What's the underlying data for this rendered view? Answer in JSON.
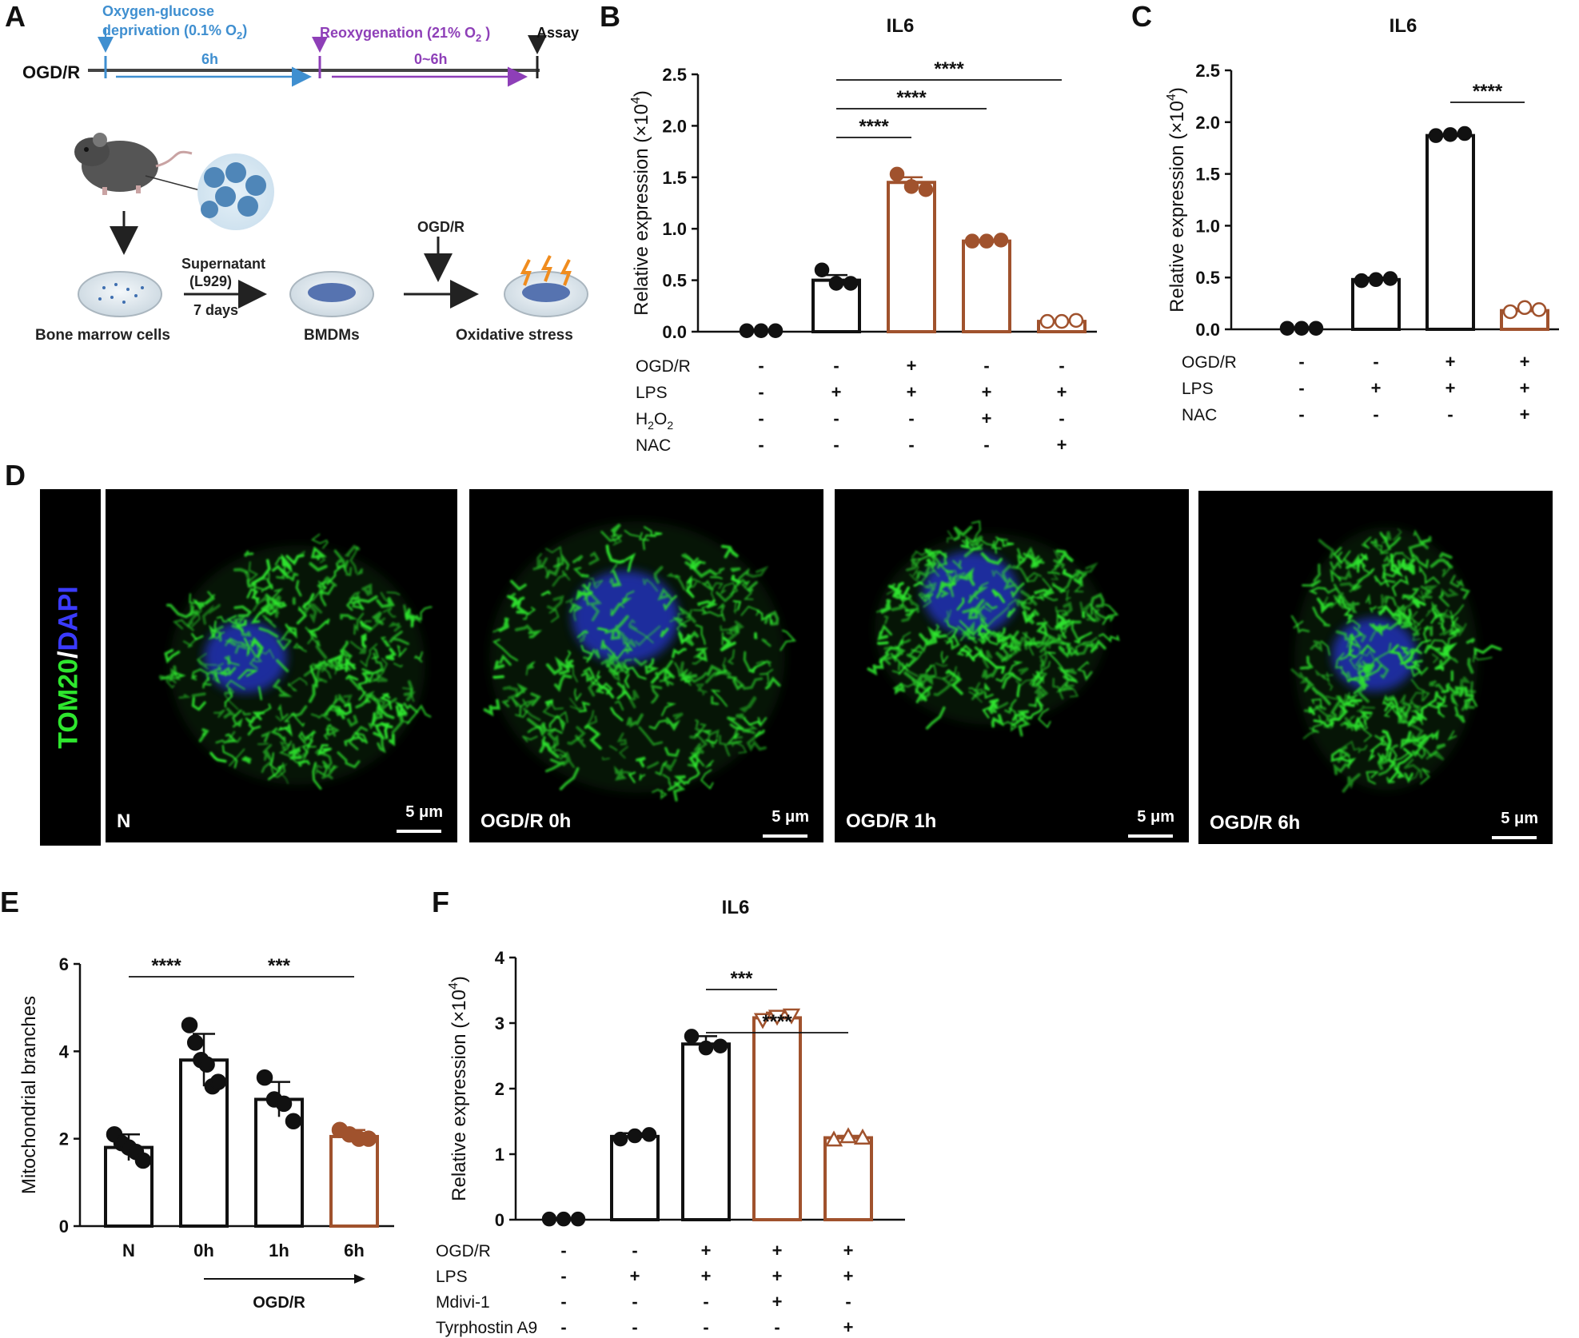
{
  "panels": {
    "A": "A",
    "B": "B",
    "C": "C",
    "D": "D",
    "E": "E",
    "F": "F"
  },
  "colors": {
    "black": "#111111",
    "brown": "#a0522d",
    "blue": "#3f8fd0",
    "purple": "#8e3fb8",
    "green": "#2ee62e",
    "dapi": "#3b3bff"
  },
  "panel_a": {
    "ogdr_label": "OGD/R",
    "ogd_line1": "Oxygen-glucose",
    "ogd_line2": "deprivation (0.1% O",
    "ogd_line2_sub": "2",
    "ogd_line2_end": ")",
    "ogd_time": "6h",
    "reox_label": "Reoxygenation  (21% O",
    "reox_sub": "2",
    "reox_end": " )",
    "reox_time": "0~6h",
    "assay": "Assay",
    "supernatant": "Supernatant",
    "l929": "(L929)",
    "seven_days": "7 days",
    "bone_marrow": "Bone marrow cells",
    "bmdms": "BMDMs",
    "ogdr_arrow": "OGD/R",
    "oxidative": "Oxidative stress"
  },
  "panel_d": {
    "stain_a": "TOM20",
    "stain_sep": "/",
    "stain_b": "DAPI",
    "images": [
      {
        "label": "N",
        "scale": "5 μm"
      },
      {
        "label": "OGD/R 0h",
        "scale": "5 μm"
      },
      {
        "label": "OGD/R 1h",
        "scale": "5 μm"
      },
      {
        "label": "OGD/R 6h",
        "scale": "5 μm"
      }
    ]
  },
  "chart_data": [
    {
      "id": "B",
      "type": "bar",
      "title": "IL6",
      "ylabel": "Relative expression (×10",
      "ylabel_sup": "4",
      "ylabel_end": ")",
      "ylim": [
        0,
        2.5
      ],
      "yticks": [
        "0.0",
        "0.5",
        "1.0",
        "1.5",
        "2.0",
        "2.5"
      ],
      "bars": [
        {
          "value": 0.0,
          "color": "black",
          "points": [
            0.01,
            0.01,
            0.01
          ]
        },
        {
          "value": 0.5,
          "color": "black",
          "points": [
            0.6,
            0.47,
            0.47
          ],
          "err": 0.05
        },
        {
          "value": 1.45,
          "color": "brown",
          "points": [
            1.53,
            1.41,
            1.38
          ],
          "err": 0.05
        },
        {
          "value": 0.88,
          "color": "brown",
          "points": [
            0.88,
            0.88,
            0.89
          ],
          "err": 0.01
        },
        {
          "value": 0.1,
          "color": "brown",
          "points": [
            0.1,
            0.1,
            0.11
          ],
          "err": 0.01
        }
      ],
      "treatments": [
        {
          "name": "OGD/R",
          "marks": [
            "-",
            "-",
            "+",
            "-",
            "-"
          ]
        },
        {
          "name": "LPS",
          "marks": [
            "-",
            "+",
            "+",
            "+",
            "+"
          ]
        },
        {
          "name": "H",
          "name_sub": "2",
          "name_mid": "O",
          "name_sub2": "2",
          "marks": [
            "-",
            "-",
            "-",
            "+",
            "-"
          ]
        },
        {
          "name": "NAC",
          "marks": [
            "-",
            "-",
            "-",
            "-",
            "+"
          ]
        }
      ],
      "significance": [
        {
          "from": 1,
          "to": 2,
          "label": "****"
        },
        {
          "from": 1,
          "to": 3,
          "label": "****"
        },
        {
          "from": 1,
          "to": 4,
          "label": "****"
        }
      ]
    },
    {
      "id": "C",
      "type": "bar",
      "title": "IL6",
      "ylabel": "Relative expression (×10",
      "ylabel_sup": "4",
      "ylabel_end": ")",
      "ylim": [
        0,
        2.5
      ],
      "yticks": [
        "0.0",
        "0.5",
        "1.0",
        "1.5",
        "2.0",
        "2.5"
      ],
      "bars": [
        {
          "value": 0.0,
          "color": "black",
          "points": [
            0.01,
            0.01,
            0.01
          ]
        },
        {
          "value": 0.48,
          "color": "black",
          "points": [
            0.47,
            0.48,
            0.49
          ],
          "err": 0.02
        },
        {
          "value": 1.87,
          "color": "black",
          "points": [
            1.87,
            1.88,
            1.89
          ],
          "err": 0.01
        },
        {
          "value": 0.18,
          "color": "brown",
          "points": [
            0.17,
            0.21,
            0.19
          ],
          "err": 0.02
        }
      ],
      "treatments": [
        {
          "name": "OGD/R",
          "marks": [
            "-",
            "-",
            "+",
            "+"
          ]
        },
        {
          "name": "LPS",
          "marks": [
            "-",
            "+",
            "+",
            "+"
          ]
        },
        {
          "name": "NAC",
          "marks": [
            "-",
            "-",
            "-",
            "+"
          ]
        }
      ],
      "significance": [
        {
          "from": 2,
          "to": 3,
          "label": "****"
        }
      ]
    },
    {
      "id": "E",
      "type": "bar",
      "ylabel": "Mitochondrial branches",
      "ylim": [
        0,
        6
      ],
      "yticks": [
        "0",
        "2",
        "4",
        "6"
      ],
      "categories": [
        "N",
        "0h",
        "1h",
        "6h"
      ],
      "xgroup_label": "OGD/R",
      "bars": [
        {
          "value": 1.8,
          "color": "black",
          "points": [
            2.1,
            1.9,
            1.8,
            1.7,
            1.5
          ],
          "err": 0.3
        },
        {
          "value": 3.8,
          "color": "black",
          "points": [
            4.6,
            4.2,
            3.8,
            3.7,
            3.2,
            3.3
          ],
          "err": 0.6
        },
        {
          "value": 2.9,
          "color": "black",
          "points": [
            3.4,
            2.9,
            2.8,
            2.4
          ],
          "err": 0.4
        },
        {
          "value": 2.05,
          "color": "brown",
          "points": [
            2.2,
            2.1,
            2.0,
            2.0
          ],
          "err": 0.15
        }
      ],
      "significance": [
        {
          "from": 0,
          "to": 1,
          "label": "****"
        },
        {
          "from": 1,
          "to": 3,
          "label": "***"
        }
      ]
    },
    {
      "id": "F",
      "type": "bar",
      "title": "IL6",
      "ylabel": "Relative expression (×10",
      "ylabel_sup": "4",
      "ylabel_end": ")",
      "ylim": [
        0,
        4
      ],
      "yticks": [
        "0",
        "1",
        "2",
        "3",
        "4"
      ],
      "bars": [
        {
          "value": 0.0,
          "color": "black",
          "points": [
            0.01,
            0.01,
            0.01
          ],
          "marker": "circle"
        },
        {
          "value": 1.27,
          "color": "black",
          "points": [
            1.23,
            1.28,
            1.3
          ],
          "err": 0.05,
          "marker": "circle"
        },
        {
          "value": 2.68,
          "color": "black",
          "points": [
            2.8,
            2.62,
            2.65
          ],
          "err": 0.12,
          "marker": "circle"
        },
        {
          "value": 3.08,
          "color": "brown",
          "points": [
            3.05,
            3.1,
            3.12
          ],
          "err": 0.08,
          "marker": "triangle-down"
        },
        {
          "value": 1.25,
          "color": "brown",
          "points": [
            1.22,
            1.27,
            1.25
          ],
          "err": 0.03,
          "marker": "triangle-up"
        }
      ],
      "treatments": [
        {
          "name": "OGD/R",
          "marks": [
            "-",
            "-",
            "+",
            "+",
            "+"
          ]
        },
        {
          "name": "LPS",
          "marks": [
            "-",
            "+",
            "+",
            "+",
            "+"
          ]
        },
        {
          "name": "Mdivi-1",
          "marks": [
            "-",
            "-",
            "-",
            "+",
            "-"
          ]
        },
        {
          "name": "Tyrphostin A9",
          "marks": [
            "-",
            "-",
            "-",
            "-",
            "+"
          ]
        }
      ],
      "significance": [
        {
          "from": 2,
          "to": 3,
          "label": "***"
        },
        {
          "from": 2,
          "to": 4,
          "label": "****"
        }
      ]
    }
  ]
}
